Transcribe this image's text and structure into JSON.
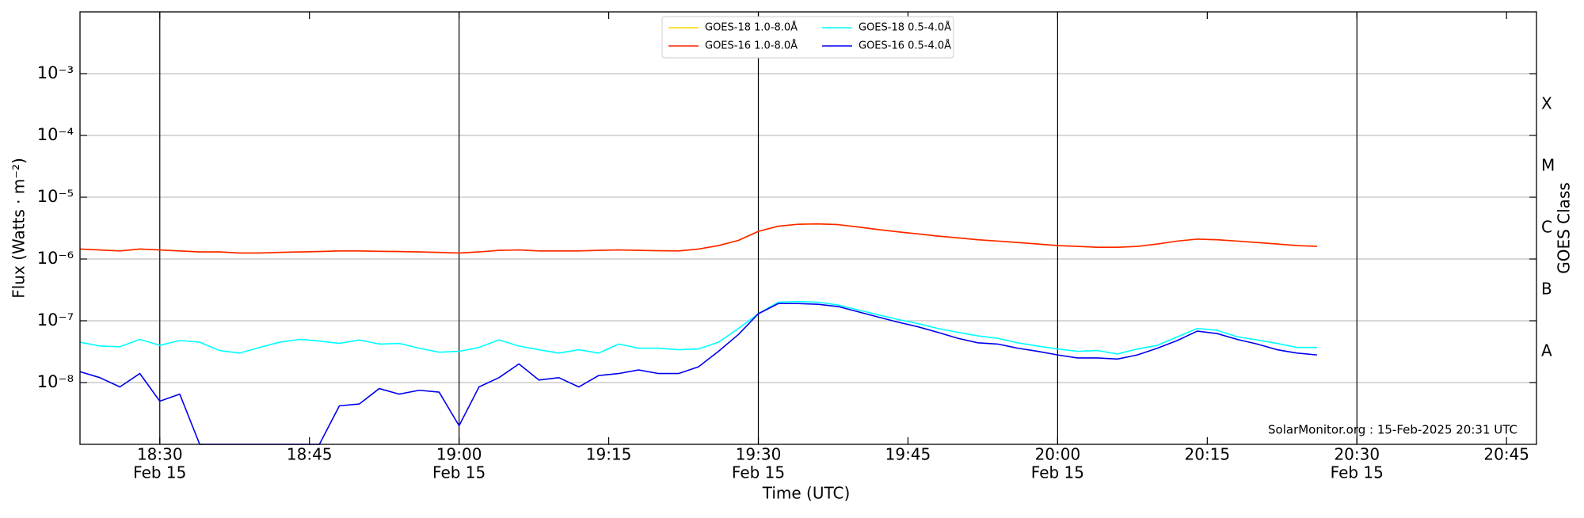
{
  "chart_data": {
    "type": "line",
    "xlabel": "Time (UTC)",
    "ylabel": "Flux (Watts · m⁻²)",
    "y2label": "GOES Class",
    "annotation": "SolarMonitor.org : 15-Feb-2025 20:31 UTC",
    "log_y": true,
    "grid": true,
    "legend": "upper center",
    "xlim": [
      "18:22",
      "20:48"
    ],
    "ylim": [
      1e-09,
      0.01
    ],
    "xticks": [
      {
        "value": "18:30",
        "label": "18:30",
        "date": "Feb 15"
      },
      "18:45",
      {
        "value": "19:00",
        "label": "19:00",
        "date": "Feb 15"
      },
      "19:15",
      {
        "value": "19:30",
        "label": "19:30",
        "date": "Feb 15"
      },
      "19:45",
      {
        "value": "20:00",
        "label": "20:00",
        "date": "Feb 15"
      },
      "20:15",
      {
        "value": "20:30",
        "label": "20:30",
        "date": "Feb 15"
      },
      "20:45"
    ],
    "yticks": [
      {
        "value": 0.001,
        "label": "10⁻³"
      },
      {
        "value": 0.0001,
        "label": "10⁻⁴"
      },
      {
        "value": 1e-05,
        "label": "10⁻⁵"
      },
      {
        "value": 1e-06,
        "label": "10⁻⁶"
      },
      {
        "value": 1e-07,
        "label": "10⁻⁷"
      },
      {
        "value": 1e-08,
        "label": "10⁻⁸"
      }
    ],
    "y2ticks": [
      {
        "value": 0.0001,
        "label": "X"
      },
      {
        "value": 1e-05,
        "label": "M"
      },
      {
        "value": 1e-06,
        "label": "C"
      },
      {
        "value": 1e-07,
        "label": "B"
      },
      {
        "value": 1e-08,
        "label": "A"
      }
    ],
    "x": [
      "18:22",
      "18:24",
      "18:26",
      "18:28",
      "18:30",
      "18:32",
      "18:34",
      "18:36",
      "18:38",
      "18:40",
      "18:42",
      "18:44",
      "18:46",
      "18:48",
      "18:50",
      "18:52",
      "18:54",
      "18:56",
      "18:58",
      "19:00",
      "19:02",
      "19:04",
      "19:06",
      "19:08",
      "19:10",
      "19:12",
      "19:14",
      "19:16",
      "19:18",
      "19:20",
      "19:22",
      "19:24",
      "19:26",
      "19:28",
      "19:30",
      "19:32",
      "19:34",
      "19:36",
      "19:38",
      "19:40",
      "19:42",
      "19:44",
      "19:46",
      "19:48",
      "19:50",
      "19:52",
      "19:54",
      "19:56",
      "19:58",
      "20:00",
      "20:02",
      "20:04",
      "20:06",
      "20:08",
      "20:10",
      "20:12",
      "20:14",
      "20:16",
      "20:18",
      "20:20",
      "20:22",
      "20:24",
      "20:26"
    ],
    "series": [
      {
        "name": "GOES-18 1.0-8.0Å",
        "color": "#ffd700",
        "values": [
          1.45e-06,
          1.4e-06,
          1.35e-06,
          1.45e-06,
          1.4e-06,
          1.35e-06,
          1.3e-06,
          1.3e-06,
          1.25e-06,
          1.25e-06,
          1.28e-06,
          1.3e-06,
          1.32e-06,
          1.35e-06,
          1.35e-06,
          1.33e-06,
          1.32e-06,
          1.3e-06,
          1.28e-06,
          1.25e-06,
          1.3e-06,
          1.38e-06,
          1.4e-06,
          1.35e-06,
          1.35e-06,
          1.35e-06,
          1.38e-06,
          1.4e-06,
          1.38e-06,
          1.36e-06,
          1.35e-06,
          1.45e-06,
          1.65e-06,
          2e-06,
          2.8e-06,
          3.4e-06,
          3.65e-06,
          3.7e-06,
          3.6e-06,
          3.3e-06,
          3e-06,
          2.75e-06,
          2.55e-06,
          2.35e-06,
          2.2e-06,
          2.05e-06,
          1.95e-06,
          1.85e-06,
          1.75e-06,
          1.65e-06,
          1.6e-06,
          1.55e-06,
          1.55e-06,
          1.6e-06,
          1.75e-06,
          1.95e-06,
          2.1e-06,
          2.05e-06,
          1.95e-06,
          1.85e-06,
          1.75e-06,
          1.65e-06,
          1.6e-06
        ]
      },
      {
        "name": "GOES-16 1.0-8.0Å",
        "color": "#ff2200",
        "values": [
          1.45e-06,
          1.4e-06,
          1.35e-06,
          1.45e-06,
          1.4e-06,
          1.35e-06,
          1.3e-06,
          1.3e-06,
          1.25e-06,
          1.25e-06,
          1.28e-06,
          1.3e-06,
          1.32e-06,
          1.35e-06,
          1.35e-06,
          1.33e-06,
          1.32e-06,
          1.3e-06,
          1.28e-06,
          1.25e-06,
          1.3e-06,
          1.38e-06,
          1.4e-06,
          1.35e-06,
          1.35e-06,
          1.35e-06,
          1.38e-06,
          1.4e-06,
          1.38e-06,
          1.36e-06,
          1.35e-06,
          1.45e-06,
          1.65e-06,
          2e-06,
          2.8e-06,
          3.4e-06,
          3.65e-06,
          3.7e-06,
          3.6e-06,
          3.3e-06,
          3e-06,
          2.75e-06,
          2.55e-06,
          2.35e-06,
          2.2e-06,
          2.05e-06,
          1.95e-06,
          1.85e-06,
          1.75e-06,
          1.65e-06,
          1.6e-06,
          1.55e-06,
          1.55e-06,
          1.6e-06,
          1.75e-06,
          1.95e-06,
          2.1e-06,
          2.05e-06,
          1.95e-06,
          1.85e-06,
          1.75e-06,
          1.65e-06,
          1.6e-06
        ]
      },
      {
        "name": "GOES-18 0.5-4.0Å",
        "color": "#00ffff",
        "values": [
          4.5e-08,
          3.9e-08,
          3.8e-08,
          5e-08,
          4e-08,
          4.8e-08,
          4.5e-08,
          3.3e-08,
          3e-08,
          3.7e-08,
          4.5e-08,
          5e-08,
          4.7e-08,
          4.3e-08,
          4.9e-08,
          4.2e-08,
          4.3e-08,
          3.6e-08,
          3.1e-08,
          3.2e-08,
          3.7e-08,
          4.9e-08,
          3.9e-08,
          3.4e-08,
          3e-08,
          3.4e-08,
          3e-08,
          4.2e-08,
          3.6e-08,
          3.6e-08,
          3.4e-08,
          3.5e-08,
          4.5e-08,
          7.5e-08,
          1.3e-07,
          2e-07,
          2.05e-07,
          2e-07,
          1.8e-07,
          1.5e-07,
          1.25e-07,
          1.05e-07,
          9e-08,
          7.5e-08,
          6.5e-08,
          5.7e-08,
          5.2e-08,
          4.4e-08,
          3.9e-08,
          3.5e-08,
          3.2e-08,
          3.3e-08,
          2.9e-08,
          3.5e-08,
          4e-08,
          5.5e-08,
          7.5e-08,
          7e-08,
          5.5e-08,
          4.9e-08,
          4.3e-08,
          3.7e-08,
          3.7e-08
        ]
      },
      {
        "name": "GOES-16 0.5-4.0Å",
        "color": "#0000ee",
        "values": [
          1.5e-08,
          1.2e-08,
          8.5e-09,
          1.4e-08,
          5e-09,
          6.5e-09,
          1e-09,
          1e-09,
          1e-09,
          1e-09,
          1e-09,
          1e-09,
          1e-09,
          4.2e-09,
          4.5e-09,
          8e-09,
          6.5e-09,
          7.5e-09,
          7e-09,
          2e-09,
          8.5e-09,
          1.2e-08,
          2e-08,
          1.1e-08,
          1.2e-08,
          8.5e-09,
          1.3e-08,
          1.4e-08,
          1.6e-08,
          1.4e-08,
          1.4e-08,
          1.8e-08,
          3.2e-08,
          6e-08,
          1.3e-07,
          1.9e-07,
          1.9e-07,
          1.85e-07,
          1.7e-07,
          1.4e-07,
          1.15e-07,
          9.5e-08,
          8e-08,
          6.5e-08,
          5.2e-08,
          4.4e-08,
          4.2e-08,
          3.6e-08,
          3.2e-08,
          2.8e-08,
          2.5e-08,
          2.5e-08,
          2.4e-08,
          2.8e-08,
          3.6e-08,
          4.8e-08,
          6.8e-08,
          6.2e-08,
          5e-08,
          4.2e-08,
          3.4e-08,
          3e-08,
          2.8e-08
        ]
      }
    ]
  }
}
